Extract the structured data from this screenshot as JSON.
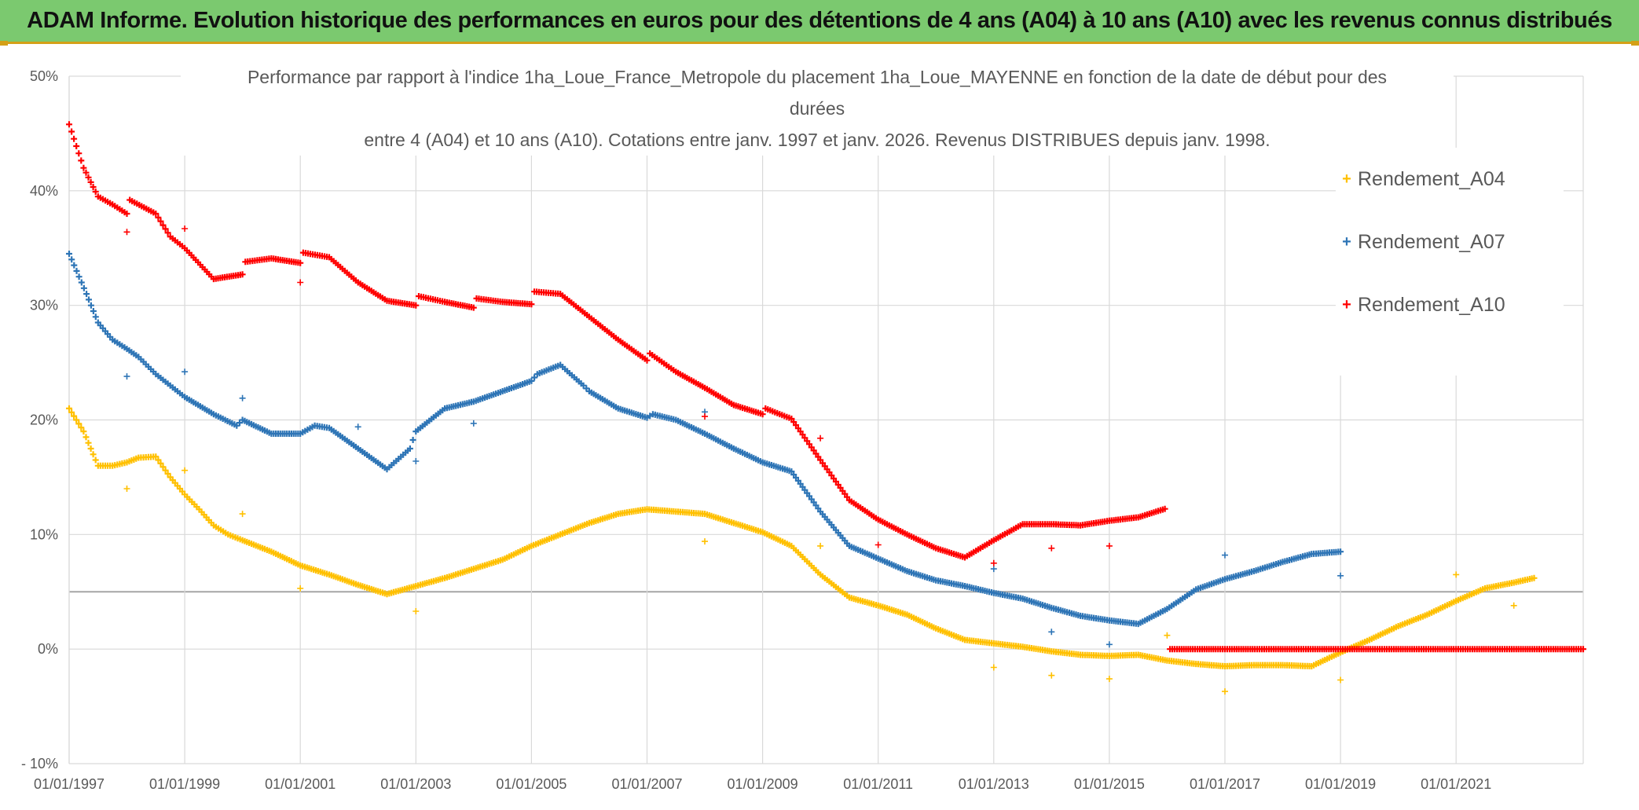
{
  "banner": {
    "title": "ADAM Informe. Evolution historique des performances en euros pour des détentions de 4 ans (A04) à 10 ans (A10) avec les revenus connus distribués",
    "background": "#7bc96f"
  },
  "chart_data": {
    "type": "scatter",
    "title_lines": [
      "Performance par rapport à l'indice 1ha_Loue_France_Metropole  du placement 1ha_Loue_MAYENNE en fonction de la date de début pour des",
      "durées",
      "entre 4 (A04) et 10 ans (A10). Cotations entre janv. 1997 et janv. 2026. Revenus DISTRIBUES depuis janv. 1998."
    ],
    "x_axis": {
      "type": "date",
      "range": [
        1997.0,
        2023.2
      ],
      "tick_values": [
        1997,
        1999,
        2001,
        2003,
        2005,
        2007,
        2009,
        2011,
        2013,
        2015,
        2017,
        2019,
        2021
      ],
      "tick_labels": [
        "01/01/1997",
        "01/01/1999",
        "01/01/2001",
        "01/01/2003",
        "01/01/2005",
        "01/01/2007",
        "01/01/2009",
        "01/01/2011",
        "01/01/2013",
        "01/01/2015",
        "01/01/2017",
        "01/01/2019",
        "01/01/2021"
      ]
    },
    "y_axis": {
      "range": [
        -10,
        50
      ],
      "tick_values": [
        -10,
        0,
        10,
        20,
        30,
        40,
        50
      ],
      "tick_labels": [
        "- 10%",
        "0%",
        "10%",
        "20%",
        "30%",
        "40%",
        "50%"
      ],
      "reference_line": 5
    },
    "series": [
      {
        "name": "Rendement_A04",
        "color": "#ffc000",
        "points": [
          [
            1997.0,
            21
          ],
          [
            1997.25,
            19
          ],
          [
            1997.5,
            16
          ],
          [
            1997.75,
            16
          ],
          [
            1998.0,
            16.3
          ],
          [
            1998.2,
            16.7
          ],
          [
            1998.5,
            16.8
          ],
          [
            1998.75,
            15
          ],
          [
            1999.0,
            13.5
          ],
          [
            1999.25,
            12.2
          ],
          [
            1999.5,
            10.8
          ],
          [
            1999.75,
            10
          ],
          [
            2000.0,
            9.5
          ],
          [
            2000.5,
            8.5
          ],
          [
            2001.0,
            7.3
          ],
          [
            2001.5,
            6.5
          ],
          [
            2002.0,
            5.6
          ],
          [
            2002.5,
            4.8
          ],
          [
            2003.0,
            5.5
          ],
          [
            2003.5,
            6.2
          ],
          [
            2004.0,
            7.0
          ],
          [
            2004.5,
            7.8
          ],
          [
            2005.0,
            9.0
          ],
          [
            2005.5,
            10.0
          ],
          [
            2006.0,
            11.0
          ],
          [
            2006.5,
            11.8
          ],
          [
            2007.0,
            12.2
          ],
          [
            2007.5,
            12.0
          ],
          [
            2008.0,
            11.8
          ],
          [
            2008.5,
            11.0
          ],
          [
            2009.0,
            10.2
          ],
          [
            2009.5,
            9.0
          ],
          [
            2010.0,
            6.5
          ],
          [
            2010.5,
            4.5
          ],
          [
            2011.0,
            3.8
          ],
          [
            2011.5,
            3.0
          ],
          [
            2012.0,
            1.8
          ],
          [
            2012.5,
            0.8
          ],
          [
            2013.0,
            0.5
          ],
          [
            2013.5,
            0.2
          ],
          [
            2014.0,
            -0.2
          ],
          [
            2014.5,
            -0.5
          ],
          [
            2015.0,
            -0.6
          ],
          [
            2015.5,
            -0.5
          ],
          [
            2016.0,
            -1.0
          ],
          [
            2016.5,
            -1.3
          ],
          [
            2017.0,
            -1.5
          ],
          [
            2017.5,
            -1.4
          ],
          [
            2018.0,
            -1.4
          ],
          [
            2018.5,
            -1.5
          ],
          [
            2019.0,
            -0.3
          ],
          [
            2019.5,
            0.8
          ],
          [
            2020.0,
            2.0
          ],
          [
            2020.5,
            3.0
          ],
          [
            2021.0,
            4.2
          ],
          [
            2021.5,
            5.3
          ],
          [
            2022.0,
            5.8
          ],
          [
            2022.35,
            6.2
          ]
        ],
        "outliers": [
          [
            1998.0,
            14
          ],
          [
            1999.0,
            15.6
          ],
          [
            2000.0,
            11.8
          ],
          [
            2001.0,
            5.3
          ],
          [
            2003.0,
            3.3
          ],
          [
            2008.0,
            9.4
          ],
          [
            2010.0,
            9.0
          ],
          [
            2013.0,
            -1.6
          ],
          [
            2014.0,
            -2.3
          ],
          [
            2015.0,
            -2.6
          ],
          [
            2016.0,
            1.2
          ],
          [
            2017.0,
            -3.7
          ],
          [
            2019.0,
            -2.7
          ],
          [
            2021.0,
            6.5
          ],
          [
            2022.0,
            3.8
          ]
        ]
      },
      {
        "name": "Rendement_A07",
        "color": "#2e75b6",
        "points": [
          [
            1997.0,
            34.5
          ],
          [
            1997.3,
            31
          ],
          [
            1997.5,
            28.5
          ],
          [
            1997.75,
            27
          ],
          [
            1998.0,
            26.2
          ],
          [
            1998.2,
            25.5
          ],
          [
            1998.5,
            24
          ],
          [
            1998.75,
            23
          ],
          [
            1999.0,
            22
          ],
          [
            1999.5,
            20.5
          ],
          [
            1999.9,
            19.5
          ],
          [
            2000.0,
            20
          ],
          [
            2000.5,
            18.8
          ],
          [
            2001.0,
            18.8
          ],
          [
            2001.25,
            19.5
          ],
          [
            2001.5,
            19.3
          ],
          [
            2002.0,
            17.5
          ],
          [
            2002.5,
            15.7
          ],
          [
            2002.9,
            17.5
          ],
          [
            2003.0,
            19
          ],
          [
            2003.5,
            21
          ],
          [
            2004.0,
            21.6
          ],
          [
            2004.5,
            22.5
          ],
          [
            2005.0,
            23.4
          ],
          [
            2005.1,
            24
          ],
          [
            2005.5,
            24.8
          ],
          [
            2005.9,
            23
          ],
          [
            2006.0,
            22.5
          ],
          [
            2006.5,
            21
          ],
          [
            2007.0,
            20.2
          ],
          [
            2007.1,
            20.5
          ],
          [
            2007.5,
            20
          ],
          [
            2008.0,
            18.8
          ],
          [
            2008.5,
            17.5
          ],
          [
            2009.0,
            16.3
          ],
          [
            2009.5,
            15.5
          ],
          [
            2010.0,
            12
          ],
          [
            2010.5,
            9
          ],
          [
            2011.0,
            7.9
          ],
          [
            2011.5,
            6.8
          ],
          [
            2012.0,
            6.0
          ],
          [
            2012.5,
            5.5
          ],
          [
            2013.0,
            4.9
          ],
          [
            2013.5,
            4.4
          ],
          [
            2014.0,
            3.6
          ],
          [
            2014.5,
            2.9
          ],
          [
            2015.0,
            2.5
          ],
          [
            2015.5,
            2.2
          ],
          [
            2016.0,
            3.5
          ],
          [
            2016.5,
            5.2
          ],
          [
            2017.0,
            6.1
          ],
          [
            2017.5,
            6.8
          ],
          [
            2018.0,
            7.6
          ],
          [
            2018.5,
            8.3
          ],
          [
            2019.0,
            8.5
          ]
        ],
        "outliers": [
          [
            1998.0,
            23.8
          ],
          [
            1999.0,
            24.2
          ],
          [
            2000.0,
            21.9
          ],
          [
            2002.0,
            19.4
          ],
          [
            2003.0,
            16.4
          ],
          [
            2004.0,
            19.7
          ],
          [
            2008.0,
            20.7
          ],
          [
            2013.0,
            7.0
          ],
          [
            2014.0,
            1.5
          ],
          [
            2015.0,
            0.4
          ],
          [
            2017.0,
            8.2
          ],
          [
            2019.0,
            6.4
          ]
        ]
      },
      {
        "name": "Rendement_A10",
        "color": "#ff0000",
        "points": [
          [
            1997.0,
            45.8
          ],
          [
            1997.25,
            42
          ],
          [
            1997.5,
            39.5
          ],
          [
            1997.75,
            38.8
          ],
          [
            1998.0,
            38.0
          ],
          [
            1998.05,
            39.2
          ],
          [
            1998.5,
            38
          ],
          [
            1998.75,
            36
          ],
          [
            1999.0,
            35
          ],
          [
            1999.5,
            32.3
          ],
          [
            2000.0,
            32.7
          ],
          [
            2000.05,
            33.8
          ],
          [
            2000.5,
            34.1
          ],
          [
            2001.0,
            33.7
          ],
          [
            2001.05,
            34.6
          ],
          [
            2001.5,
            34.2
          ],
          [
            2002.0,
            32
          ],
          [
            2002.5,
            30.4
          ],
          [
            2003.0,
            30
          ],
          [
            2003.05,
            30.8
          ],
          [
            2003.5,
            30.3
          ],
          [
            2004.0,
            29.8
          ],
          [
            2004.05,
            30.6
          ],
          [
            2004.5,
            30.3
          ],
          [
            2005.0,
            30.1
          ],
          [
            2005.05,
            31.2
          ],
          [
            2005.5,
            31.0
          ],
          [
            2006.0,
            29.0
          ],
          [
            2006.5,
            27.0
          ],
          [
            2007.0,
            25.2
          ],
          [
            2007.05,
            25.8
          ],
          [
            2007.5,
            24.2
          ],
          [
            2008.0,
            22.8
          ],
          [
            2008.5,
            21.3
          ],
          [
            2009.0,
            20.5
          ],
          [
            2009.05,
            21
          ],
          [
            2009.5,
            20.1
          ],
          [
            2010.0,
            16.5
          ],
          [
            2010.5,
            13
          ],
          [
            2011.0,
            11.3
          ],
          [
            2011.5,
            10
          ],
          [
            2012.0,
            8.8
          ],
          [
            2012.5,
            8
          ],
          [
            2013.0,
            9.5
          ],
          [
            2013.5,
            10.9
          ],
          [
            2014.0,
            10.9
          ],
          [
            2014.5,
            10.8
          ],
          [
            2015.0,
            11.2
          ],
          [
            2015.5,
            11.5
          ],
          [
            2016.0,
            12.3
          ],
          [
            2016.05,
            0
          ],
          [
            2017.0,
            0
          ],
          [
            2018.0,
            0
          ],
          [
            2019.0,
            0
          ],
          [
            2020.0,
            0
          ],
          [
            2021.0,
            0
          ],
          [
            2022.0,
            0
          ],
          [
            2023.2,
            0
          ]
        ],
        "outliers": [
          [
            1998.0,
            36.4
          ],
          [
            1999.0,
            36.7
          ],
          [
            2001.0,
            32
          ],
          [
            2008.0,
            20.3
          ],
          [
            2010.0,
            18.4
          ],
          [
            2011.0,
            9.1
          ],
          [
            2013.0,
            7.5
          ],
          [
            2014.0,
            8.8
          ],
          [
            2015.0,
            9.0
          ]
        ]
      }
    ],
    "legend": {
      "position": "top-right",
      "marker": "+"
    }
  }
}
